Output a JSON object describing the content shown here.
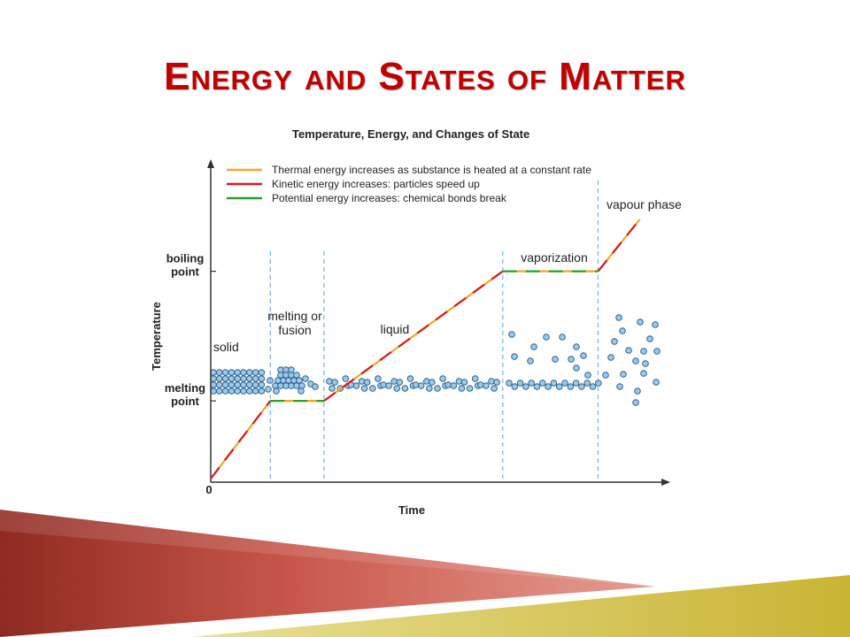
{
  "slide": {
    "title": "Energy and States of Matter"
  },
  "colors": {
    "title": "#c00000",
    "thermal": "#f5a623",
    "kinetic": "#d7191c",
    "potential": "#2ca02c",
    "particle_fill": "#9ec9ea",
    "particle_stroke": "#2b5f8a",
    "divider": "#6fb3e0"
  },
  "chart_data": {
    "type": "line",
    "title": "Temperature, Energy, and Changes of State",
    "xlabel": "Time",
    "ylabel": "Temperature",
    "x_tick_labels": [
      "0"
    ],
    "y_tick_labels": [
      "melting point",
      "boiling point"
    ],
    "legend": [
      {
        "key": "thermal",
        "label": "Thermal energy increases as substance is heated at a constant rate"
      },
      {
        "key": "kinetic",
        "label": "Kinetic energy increases: particles speed up"
      },
      {
        "key": "potential",
        "label": "Potential energy increases: chemical bonds break"
      }
    ],
    "legend_position": "top-left",
    "grid": false,
    "xlim": [
      0,
      10
    ],
    "ylim": [
      0,
      10
    ],
    "levels": {
      "melting": 3,
      "boiling": 8
    },
    "series": [
      {
        "x": [
          0,
          1,
          1.9,
          4.9,
          6.5,
          7.2
        ],
        "y": [
          0,
          3,
          3,
          8,
          8,
          10
        ]
      }
    ],
    "segments": [
      {
        "from": 0,
        "to": 1,
        "phase": "heating"
      },
      {
        "from": 1,
        "to": 1.9,
        "phase": "plateau"
      },
      {
        "from": 1.9,
        "to": 4.9,
        "phase": "heating"
      },
      {
        "from": 4.9,
        "to": 6.5,
        "phase": "plateau"
      },
      {
        "from": 6.5,
        "to": 7.2,
        "phase": "heating"
      }
    ],
    "region_boundaries": [
      1,
      1.9,
      4.9,
      6.5
    ],
    "regions": [
      {
        "label": "solid"
      },
      {
        "label": "melting or fusion"
      },
      {
        "label": "liquid"
      },
      {
        "label": "vaporization"
      },
      {
        "label": "vapour phase"
      }
    ]
  }
}
